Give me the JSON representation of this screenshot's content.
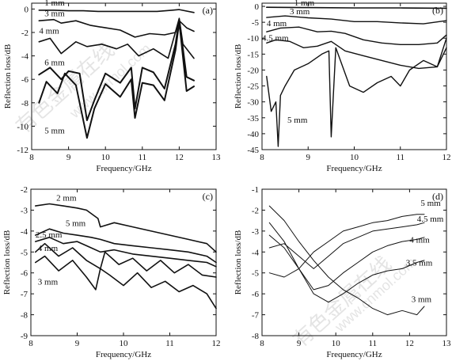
{
  "watermark": [
    "有色金属在线",
    "www.cnmol.com"
  ],
  "chart_data": [
    {
      "type": "line",
      "panel_label": "(a)",
      "xlabel": "Frequency/GHz",
      "ylabel": "Reflection loss/dB",
      "xlim": [
        8,
        13
      ],
      "ylim": [
        -12,
        0.5
      ],
      "xticks": [
        8,
        9,
        10,
        11,
        12,
        13
      ],
      "yticks": [
        0,
        -2,
        -4,
        -6,
        -8,
        -10,
        -12
      ],
      "grid": false,
      "series": [
        {
          "name": "1 mm",
          "x": [
            8.2,
            8.6,
            9.0,
            9.4,
            9.8,
            10.2,
            10.6,
            11.0,
            11.4,
            11.8,
            12.0,
            12.4
          ],
          "y": [
            -0.1,
            -0.1,
            -0.15,
            -0.15,
            -0.2,
            -0.2,
            -0.2,
            -0.2,
            -0.2,
            -0.1,
            -0.05,
            -0.3
          ]
        },
        {
          "name": "3 mm",
          "x": [
            8.2,
            8.6,
            8.8,
            9.2,
            9.6,
            10.0,
            10.4,
            10.8,
            11.2,
            11.6,
            11.9,
            12.0,
            12.2,
            12.4
          ],
          "y": [
            -1.0,
            -0.9,
            -1.2,
            -1.0,
            -1.4,
            -1.6,
            -1.8,
            -2.4,
            -2.1,
            -2.2,
            -2.0,
            -1.0,
            -1.6,
            -1.9
          ]
        },
        {
          "name": "4 mm",
          "x": [
            8.2,
            8.5,
            8.8,
            9.2,
            9.5,
            9.9,
            10.3,
            10.6,
            10.9,
            11.3,
            11.7,
            12.0,
            12.1,
            12.4
          ],
          "y": [
            -2.8,
            -2.5,
            -3.8,
            -2.8,
            -3.2,
            -3.0,
            -3.4,
            -3.0,
            -4.0,
            -3.4,
            -4.2,
            -0.8,
            -3.0,
            -4.2
          ]
        },
        {
          "name": "6 mm",
          "x": [
            8.2,
            8.5,
            8.8,
            9.0,
            9.3,
            9.5,
            9.7,
            10.0,
            10.4,
            10.7,
            10.8,
            11.0,
            11.3,
            11.6,
            11.9,
            12.0,
            12.2,
            12.4
          ],
          "y": [
            -5.6,
            -5.0,
            -6.0,
            -5.3,
            -5.5,
            -9.5,
            -7.8,
            -5.5,
            -6.3,
            -5.0,
            -8.5,
            -5.0,
            -5.4,
            -6.8,
            -3.0,
            -0.9,
            -5.8,
            -6.1
          ]
        },
        {
          "name": "5 mm",
          "x": [
            8.2,
            8.4,
            8.7,
            8.9,
            9.2,
            9.5,
            9.7,
            10.0,
            10.4,
            10.7,
            10.8,
            11.0,
            11.3,
            11.6,
            11.9,
            12.0,
            12.2,
            12.4
          ],
          "y": [
            -8.0,
            -6.2,
            -7.2,
            -5.5,
            -6.5,
            -11.0,
            -8.5,
            -6.4,
            -7.5,
            -6.0,
            -9.3,
            -6.3,
            -6.5,
            -7.8,
            -3.5,
            -1.1,
            -7.0,
            -6.6
          ]
        }
      ]
    },
    {
      "type": "line",
      "panel_label": "(b)",
      "xlabel": "Frequency/GHz",
      "ylabel": "Reflection loss/dB",
      "xlim": [
        8,
        12
      ],
      "ylim": [
        -45,
        1
      ],
      "xticks": [
        8,
        9,
        10,
        11,
        12
      ],
      "yticks": [
        0,
        -5,
        -10,
        -15,
        -20,
        -25,
        -30,
        -35,
        -40,
        -45
      ],
      "grid": false,
      "series": [
        {
          "name": "1 mm",
          "x": [
            8.1,
            9.0,
            10.0,
            11.0,
            12.0
          ],
          "y": [
            -0.3,
            -0.4,
            -0.5,
            -0.5,
            -0.6
          ]
        },
        {
          "name": "3 mm",
          "x": [
            8.1,
            8.5,
            9.0,
            9.5,
            10.0,
            10.5,
            11.0,
            11.5,
            12.0
          ],
          "y": [
            -3.5,
            -3.0,
            -3.6,
            -4.0,
            -4.8,
            -4.8,
            -5.2,
            -5.5,
            -4.5
          ]
        },
        {
          "name": "4 mm",
          "x": [
            8.1,
            8.4,
            8.8,
            9.2,
            9.5,
            9.8,
            10.2,
            10.6,
            11.0,
            11.4,
            11.8,
            12.0
          ],
          "y": [
            -8.0,
            -6.8,
            -6.5,
            -8.0,
            -7.8,
            -8.5,
            -10.5,
            -11.5,
            -12.0,
            -12.0,
            -11.5,
            -9.0
          ]
        },
        {
          "name": "4.5 mm",
          "x": [
            8.1,
            8.3,
            8.6,
            8.9,
            9.2,
            9.5,
            9.8,
            10.2,
            10.6,
            11.0,
            11.4,
            11.8,
            12.0
          ],
          "y": [
            -11.5,
            -10.5,
            -11.0,
            -13.0,
            -12.5,
            -11.0,
            -14.0,
            -15.5,
            -17.0,
            -18.5,
            -19.5,
            -19.0,
            -10.0
          ]
        },
        {
          "name": "5 mm",
          "x": [
            8.1,
            8.2,
            8.3,
            8.35,
            8.4,
            8.5,
            8.7,
            9.0,
            9.3,
            9.45,
            9.5,
            9.6,
            9.9,
            10.2,
            10.5,
            10.8,
            11.0,
            11.2,
            11.5,
            11.8,
            12.0
          ],
          "y": [
            -22.0,
            -33.0,
            -30.0,
            -44.0,
            -28.0,
            -25.0,
            -20.0,
            -18.0,
            -15.0,
            -14.0,
            -41.0,
            -13.0,
            -25.0,
            -27.0,
            -24.0,
            -22.0,
            -25.0,
            -20.0,
            -17.0,
            -19.0,
            -13.0
          ]
        }
      ]
    },
    {
      "type": "line",
      "panel_label": "(c)",
      "xlabel": "Frequency/GHz",
      "ylabel": "Reflection loss/dB",
      "xlim": [
        8,
        12
      ],
      "ylim": [
        -9,
        -2
      ],
      "xticks": [
        8,
        9,
        10,
        11,
        12
      ],
      "yticks": [
        -2,
        -3,
        -4,
        -5,
        -6,
        -7,
        -8,
        -9
      ],
      "grid": false,
      "series": [
        {
          "name": "2 mm",
          "x": [
            8.1,
            8.4,
            8.7,
            9.0,
            9.2,
            9.45,
            9.5,
            9.8,
            10.2,
            10.6,
            11.0,
            11.4,
            11.8,
            12.0
          ],
          "y": [
            -2.8,
            -2.7,
            -2.8,
            -2.9,
            -3.0,
            -3.4,
            -3.8,
            -3.6,
            -3.8,
            -4.0,
            -4.2,
            -4.4,
            -4.6,
            -5.0
          ]
        },
        {
          "name": "5 mm",
          "x": [
            8.1,
            8.4,
            8.7,
            9.0,
            9.3,
            9.5,
            9.8,
            10.2,
            10.6,
            11.0,
            11.4,
            11.8,
            12.0
          ],
          "y": [
            -4.2,
            -3.9,
            -4.1,
            -4.2,
            -4.3,
            -4.4,
            -4.6,
            -4.7,
            -4.8,
            -4.9,
            -5.0,
            -5.2,
            -5.5
          ]
        },
        {
          "name": "2.5 mm",
          "x": [
            8.1,
            8.4,
            8.7,
            9.0,
            9.3,
            9.5,
            9.8,
            10.2,
            10.6,
            11.0,
            11.4,
            11.8,
            12.0
          ],
          "y": [
            -4.5,
            -4.3,
            -4.6,
            -4.5,
            -4.8,
            -5.0,
            -4.9,
            -5.1,
            -5.2,
            -5.3,
            -5.4,
            -5.5,
            -5.7
          ]
        },
        {
          "name": "4 mm",
          "x": [
            8.1,
            8.3,
            8.6,
            8.9,
            9.2,
            9.5,
            9.6,
            9.9,
            10.2,
            10.5,
            10.8,
            11.1,
            11.4,
            11.7,
            12.0
          ],
          "y": [
            -5.0,
            -4.6,
            -5.2,
            -4.8,
            -5.4,
            -5.8,
            -5.0,
            -5.6,
            -5.3,
            -5.9,
            -5.4,
            -6.0,
            -5.6,
            -6.1,
            -6.2
          ]
        },
        {
          "name": "3 mm",
          "x": [
            8.1,
            8.3,
            8.6,
            8.9,
            9.2,
            9.4,
            9.5,
            9.7,
            10.0,
            10.3,
            10.6,
            10.9,
            11.2,
            11.5,
            11.8,
            12.0
          ],
          "y": [
            -5.5,
            -5.2,
            -5.9,
            -5.4,
            -6.2,
            -6.8,
            -5.8,
            -6.1,
            -6.6,
            -6.0,
            -6.7,
            -6.4,
            -6.9,
            -6.6,
            -7.0,
            -7.7
          ]
        }
      ]
    },
    {
      "type": "line",
      "panel_label": "(d)",
      "xlabel": "Frequency/GHz",
      "ylabel": "Reflection loss/dB",
      "xlim": [
        8,
        13
      ],
      "ylim": [
        -8,
        -1
      ],
      "xticks": [
        8,
        9,
        10,
        11,
        12,
        13
      ],
      "yticks": [
        -1,
        -2,
        -3,
        -4,
        -5,
        -6,
        -7,
        -8
      ],
      "grid": false,
      "series": [
        {
          "name": "5 mm",
          "x": [
            8.2,
            8.6,
            9.0,
            9.4,
            9.8,
            10.2,
            10.6,
            11.0,
            11.4,
            11.8,
            12.2,
            12.4
          ],
          "y": [
            -5.0,
            -5.2,
            -4.8,
            -4.0,
            -3.5,
            -3.0,
            -2.8,
            -2.6,
            -2.5,
            -2.3,
            -2.2,
            -2.2
          ]
        },
        {
          "name": "4.5 mm",
          "x": [
            8.2,
            8.6,
            9.0,
            9.4,
            9.8,
            10.2,
            10.6,
            11.0,
            11.4,
            11.8,
            12.2,
            12.4
          ],
          "y": [
            -3.8,
            -3.6,
            -4.2,
            -4.8,
            -4.2,
            -3.6,
            -3.3,
            -3.0,
            -2.9,
            -2.8,
            -2.7,
            -2.6
          ]
        },
        {
          "name": "4 mm",
          "x": [
            8.2,
            8.6,
            9.0,
            9.4,
            9.8,
            10.2,
            10.6,
            11.0,
            11.4,
            11.8,
            12.2,
            12.4
          ],
          "y": [
            -3.2,
            -3.8,
            -4.8,
            -5.8,
            -5.6,
            -5.0,
            -4.5,
            -4.0,
            -3.7,
            -3.5,
            -3.4,
            -3.3
          ]
        },
        {
          "name": "3.5 mm",
          "x": [
            8.2,
            8.6,
            9.0,
            9.4,
            9.8,
            10.2,
            10.6,
            11.0,
            11.4,
            11.8,
            12.2,
            12.4
          ],
          "y": [
            -2.6,
            -3.5,
            -4.8,
            -6.0,
            -6.4,
            -6.0,
            -5.5,
            -5.1,
            -4.9,
            -4.8,
            -4.5,
            -4.4
          ]
        },
        {
          "name": "3 mm",
          "x": [
            8.2,
            8.6,
            9.0,
            9.4,
            9.8,
            10.2,
            10.6,
            11.0,
            11.4,
            11.8,
            12.2,
            12.4
          ],
          "y": [
            -1.8,
            -2.5,
            -3.5,
            -4.4,
            -5.2,
            -5.8,
            -6.2,
            -6.7,
            -7.0,
            -6.8,
            -7.0,
            -6.6
          ]
        }
      ]
    }
  ]
}
